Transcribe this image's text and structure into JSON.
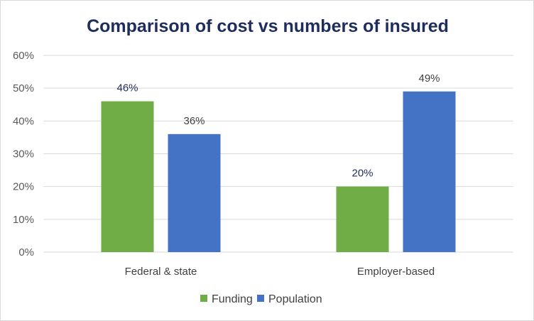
{
  "chart_data": {
    "type": "bar",
    "title": "Comparison of cost vs numbers of insured",
    "categories": [
      "Federal & state",
      "Employer-based"
    ],
    "series": [
      {
        "name": "Funding",
        "values": [
          46,
          20
        ],
        "labels": [
          "46%",
          "20%"
        ],
        "color": "#70ad47",
        "label_color": "#1f2d5c"
      },
      {
        "name": "Population",
        "values": [
          36,
          49
        ],
        "labels": [
          "36%",
          "49%"
        ],
        "color": "#4472c4",
        "label_color": "#404040"
      }
    ],
    "ylim": [
      0,
      60
    ],
    "yticks": [
      0,
      10,
      20,
      30,
      40,
      50,
      60
    ],
    "ytick_labels": [
      "0%",
      "10%",
      "20%",
      "30%",
      "40%",
      "50%",
      "60%"
    ],
    "grid": true,
    "gridline_color": "#d9d9d9",
    "legend_position": "bottom"
  }
}
